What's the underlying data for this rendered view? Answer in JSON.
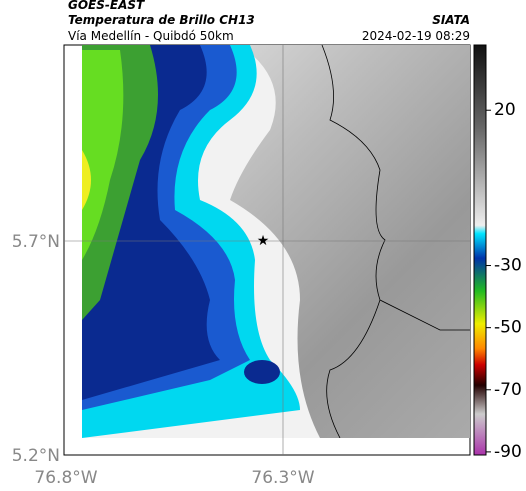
{
  "header": {
    "source": "GOES-EAST",
    "title": "Temperatura de Brillo CH13",
    "subtitle": "Vía Medellín - Quibdó 50km",
    "agency": "SIATA",
    "timestamp": "2024-02-19 08:29"
  },
  "axes": {
    "lat_labels": [
      "5.7°N",
      "5.2°N"
    ],
    "lon_labels": [
      "76.8°W",
      "76.3°W"
    ]
  },
  "colorbar": {
    "lim": [
      -91,
      41
    ],
    "ticks": [
      20,
      -30,
      -50,
      -70,
      -90
    ]
  }
}
